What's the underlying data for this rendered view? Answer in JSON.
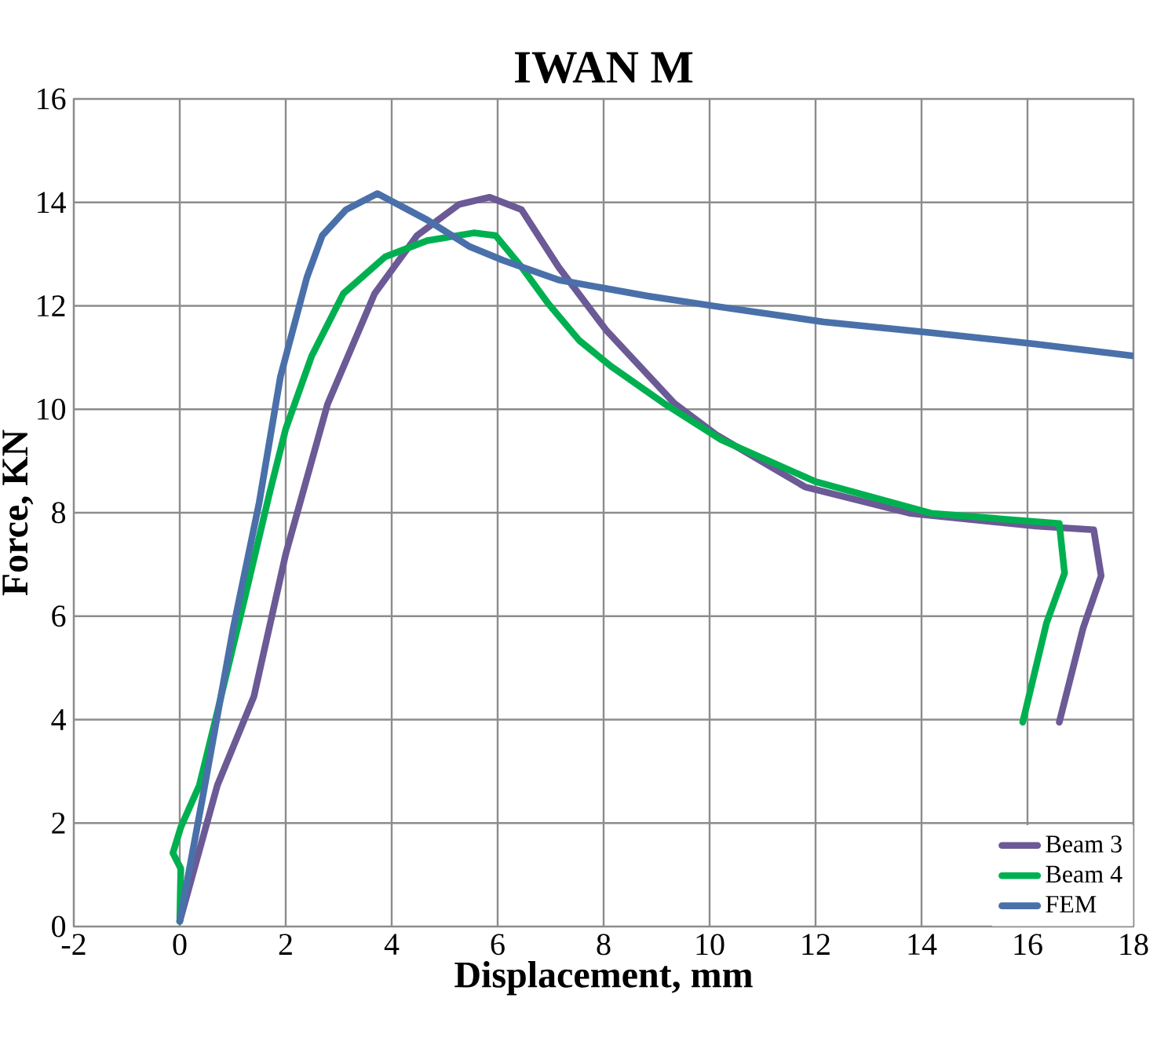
{
  "chart_data": {
    "type": "line",
    "title": "IWAN M",
    "xlabel": "Displacement, mm",
    "ylabel": "Force, KN",
    "xlim": [
      -2,
      18
    ],
    "xticks": [
      -2,
      0,
      2,
      4,
      6,
      8,
      10,
      12,
      14,
      16,
      18
    ],
    "ylim": [
      0,
      16
    ],
    "yticks": [
      0,
      2,
      4,
      6,
      8,
      10,
      12,
      14,
      16
    ],
    "grid": true,
    "legend": "bottom right",
    "marker": "none",
    "line_style": "solid",
    "series": [
      {
        "name": "Beam 3",
        "color": "#6b5a95",
        "x": [
          0,
          0.71,
          1.4,
          2.0,
          2.79,
          3.68,
          4.48,
          5.27,
          5.85,
          6.45,
          7.15,
          8.04,
          9.33,
          10.12,
          11.8,
          13.78,
          16.16,
          17.25,
          17.39,
          17.05,
          16.6
        ],
        "values": [
          0.1,
          2.73,
          4.45,
          7.2,
          10.1,
          12.24,
          13.36,
          13.96,
          14.1,
          13.86,
          12.75,
          11.54,
          10.12,
          9.51,
          8.5,
          7.99,
          7.74,
          7.67,
          6.78,
          5.77,
          3.95
        ]
      },
      {
        "name": "Beam 4",
        "color": "#00b050",
        "x": [
          0,
          0.02,
          -0.13,
          0.02,
          0.37,
          0.71,
          1.21,
          1.7,
          2.0,
          2.49,
          3.09,
          3.88,
          4.67,
          5.55,
          5.96,
          6.45,
          6.95,
          7.54,
          8.14,
          9.13,
          10.22,
          12.0,
          14.18,
          16.6,
          16.7,
          16.36,
          15.91
        ],
        "values": [
          0.1,
          1.12,
          1.42,
          1.92,
          2.73,
          4.15,
          6.28,
          8.4,
          9.62,
          11.03,
          12.24,
          12.95,
          13.26,
          13.41,
          13.36,
          12.75,
          12.05,
          11.33,
          10.83,
          10.12,
          9.41,
          8.6,
          7.99,
          7.79,
          6.83,
          5.87,
          3.95
        ]
      },
      {
        "name": "FEM",
        "color": "#4a70aa",
        "x": [
          0,
          0.42,
          1.01,
          1.5,
          1.9,
          2.4,
          2.69,
          3.14,
          3.73,
          4.67,
          5.46,
          6.1,
          7.15,
          8.83,
          10.12,
          12.15,
          14.18,
          16.16,
          18.0
        ],
        "values": [
          0.1,
          2.43,
          5.77,
          8.2,
          10.63,
          12.55,
          13.36,
          13.86,
          14.17,
          13.66,
          13.15,
          12.88,
          12.5,
          12.19,
          11.99,
          11.69,
          11.48,
          11.26,
          11.03
        ]
      }
    ]
  }
}
